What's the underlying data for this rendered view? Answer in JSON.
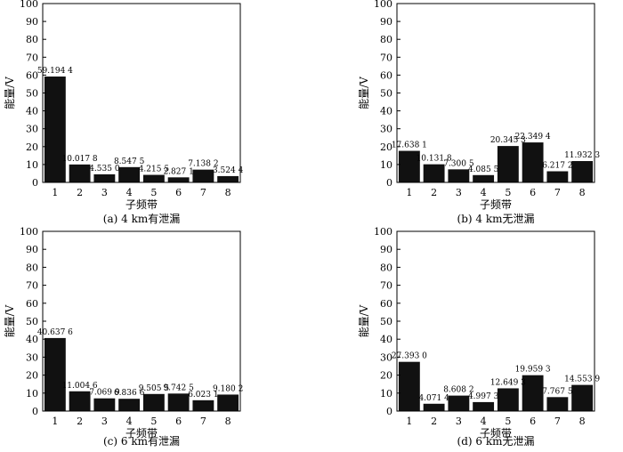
{
  "figure": {
    "y_ticks": [
      "0",
      "10",
      "20",
      "30",
      "40",
      "50",
      "60",
      "70",
      "80",
      "90",
      "100"
    ]
  },
  "chart_data": [
    {
      "type": "bar",
      "caption": "(a) 4 km有泄漏",
      "xlabel": "子频带",
      "ylabel": "能量/V",
      "ylim": [
        0,
        100
      ],
      "categories": [
        "1",
        "2",
        "3",
        "4",
        "5",
        "6",
        "7",
        "8"
      ],
      "values": [
        59.1944,
        10.0178,
        4.535,
        8.5475,
        4.2155,
        2.8271,
        7.1382,
        3.5244
      ],
      "value_labels": [
        "59.194 4",
        "10.017 8",
        "4.535 0",
        "8.547 5",
        "4.215 5",
        "2.827 1",
        "7.138 2",
        "3.524 4"
      ],
      "bar_color": "#111111",
      "grid": false
    },
    {
      "type": "bar",
      "caption": "(b) 4 km无泄漏",
      "xlabel": "子频带",
      "ylabel": "能量/V",
      "ylim": [
        0,
        100
      ],
      "categories": [
        "1",
        "2",
        "3",
        "4",
        "5",
        "6",
        "7",
        "8"
      ],
      "values": [
        17.6381,
        10.1318,
        7.3005,
        4.0855,
        20.3453,
        22.3494,
        6.2172,
        11.9323
      ],
      "value_labels": [
        "17.638 1",
        "10.131 8",
        "7.300 5",
        "4.085 5",
        "20.345 3",
        "22.349 4",
        "6.217 2",
        "11.932 3"
      ],
      "bar_color": "#111111",
      "grid": false
    },
    {
      "type": "bar",
      "caption": "(c) 6 km有泄漏",
      "xlabel": "子频带",
      "ylabel": "能量/V",
      "ylim": [
        0,
        100
      ],
      "categories": [
        "1",
        "2",
        "3",
        "4",
        "5",
        "6",
        "7",
        "8"
      ],
      "values": [
        40.6376,
        11.0046,
        7.0699,
        6.8366,
        9.5055,
        9.7425,
        6.0231,
        9.1802
      ],
      "value_labels": [
        "40.637 6",
        "11.004 6",
        "7.069 9",
        "6.836 6",
        "9.505 5",
        "9.742 5",
        "6.023 1",
        "9.180 2"
      ],
      "bar_color": "#111111",
      "grid": false
    },
    {
      "type": "bar",
      "caption": "(d) 6 km无泄漏",
      "xlabel": "子频带",
      "ylabel": "能量/V",
      "ylim": [
        0,
        100
      ],
      "categories": [
        "1",
        "2",
        "3",
        "4",
        "5",
        "6",
        "7",
        "8"
      ],
      "values": [
        27.393,
        4.0714,
        8.6082,
        4.9973,
        12.6493,
        19.9593,
        7.7675,
        14.5539
      ],
      "value_labels": [
        "27.393 0",
        "4.071 4",
        "8.608 2",
        "4.997 3",
        "12.649 3",
        "19.959 3",
        "7.767 5",
        "14.553 9"
      ],
      "bar_color": "#111111",
      "grid": false
    }
  ]
}
